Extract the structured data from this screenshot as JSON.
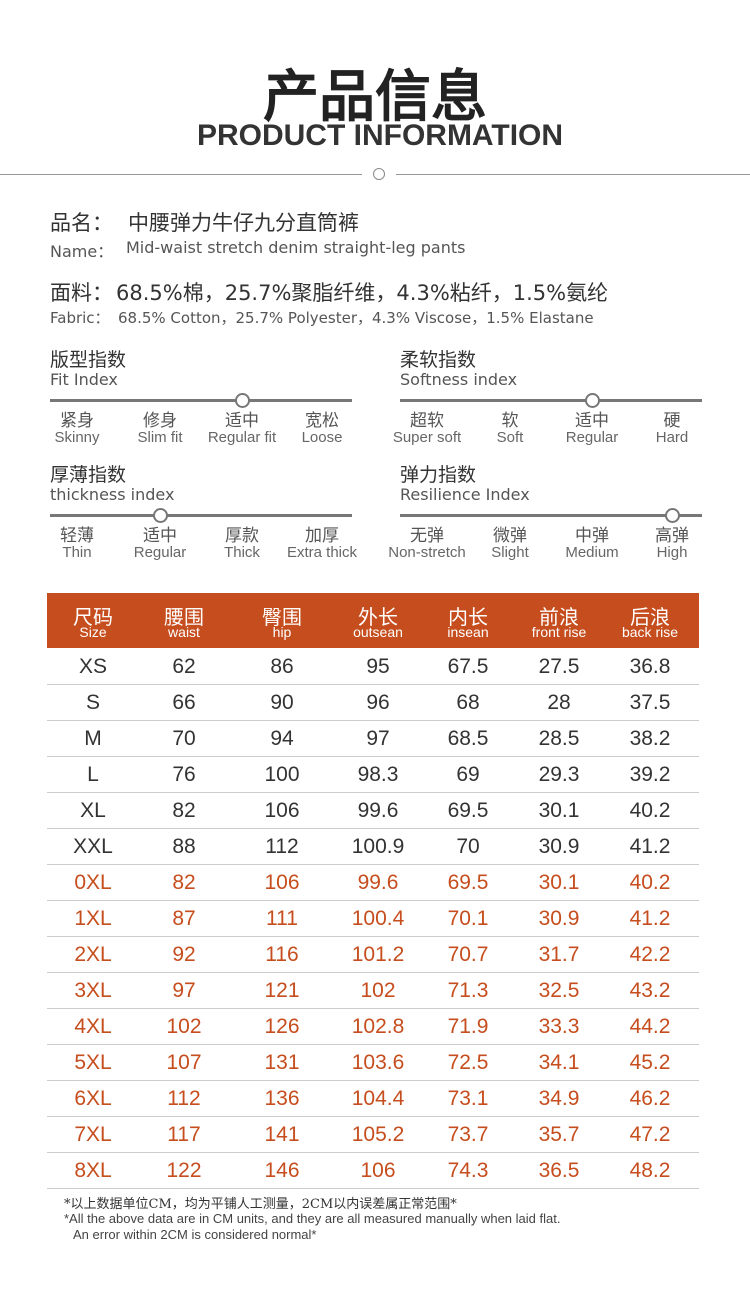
{
  "header": {
    "title": "产品信息",
    "subtitle": "PRODUCT INFORMATION"
  },
  "name": {
    "label_cn": "品名：",
    "value_cn": "中腰弹力牛仔九分直筒裤",
    "label_en": "Name：",
    "value_en": "Mid-waist stretch denim straight-leg pants"
  },
  "fabric": {
    "label_cn": "面料：",
    "value_cn": "68.5%棉，25.7%聚脂纤维，4.3%粘纤，1.5%氨纶",
    "label_en": "Fabric：",
    "value_en": "68.5% Cotton，25.7% Polyester，4.3% Viscose，1.5% Elastane"
  },
  "indices": [
    {
      "title_cn": "版型指数",
      "title_en": "Fit Index",
      "options": [
        {
          "cn": "紧身",
          "en": "Skinny"
        },
        {
          "cn": "修身",
          "en": "Slim fit"
        },
        {
          "cn": "适中",
          "en": "Regular fit"
        },
        {
          "cn": "宽松",
          "en": "Loose"
        }
      ]
    },
    {
      "title_cn": "柔软指数",
      "title_en": "Softness index",
      "options": [
        {
          "cn": "超软",
          "en": "Super soft"
        },
        {
          "cn": "软",
          "en": "Soft"
        },
        {
          "cn": "适中",
          "en": "Regular"
        },
        {
          "cn": "硬",
          "en": "Hard"
        }
      ]
    },
    {
      "title_cn": "厚薄指数",
      "title_en": "thickness index",
      "options": [
        {
          "cn": "轻薄",
          "en": "Thin"
        },
        {
          "cn": "适中",
          "en": "Regular"
        },
        {
          "cn": "厚款",
          "en": "Thick"
        },
        {
          "cn": "加厚",
          "en": "Extra thick"
        }
      ]
    },
    {
      "title_cn": "弹力指数",
      "title_en": "Resilience Index",
      "options": [
        {
          "cn": "无弹",
          "en": "Non-stretch"
        },
        {
          "cn": "微弹",
          "en": "Slight"
        },
        {
          "cn": "中弹",
          "en": "Medium"
        },
        {
          "cn": "高弹",
          "en": "High"
        }
      ]
    }
  ],
  "table": {
    "headers": [
      {
        "cn": "尺码",
        "en": "Size"
      },
      {
        "cn": "腰围",
        "en": "waist"
      },
      {
        "cn": "臀围",
        "en": "hip"
      },
      {
        "cn": "外长",
        "en": "outsean"
      },
      {
        "cn": "内长",
        "en": "insean"
      },
      {
        "cn": "前浪",
        "en": "front rise"
      },
      {
        "cn": "后浪",
        "en": "back rise"
      }
    ],
    "rows": [
      [
        "XS",
        62,
        86,
        95,
        67.5,
        27.5,
        36.8
      ],
      [
        "S",
        66,
        90,
        96,
        68,
        28,
        37.5
      ],
      [
        "M",
        70,
        94,
        97,
        68.5,
        28.5,
        38.2
      ],
      [
        "L",
        76,
        100,
        98.3,
        69,
        29.3,
        39.2
      ],
      [
        "XL",
        82,
        106,
        99.6,
        69.5,
        30.1,
        40.2
      ],
      [
        "XXL",
        88,
        112,
        100.9,
        70,
        30.9,
        41.2
      ],
      [
        "0XL",
        82,
        106,
        99.6,
        69.5,
        30.1,
        40.2
      ],
      [
        "1XL",
        87,
        111,
        100.4,
        70.1,
        30.9,
        41.2
      ],
      [
        "2XL",
        92,
        116,
        101.2,
        70.7,
        31.7,
        42.2
      ],
      [
        "3XL",
        97,
        121,
        102,
        71.3,
        32.5,
        43.2
      ],
      [
        "4XL",
        102,
        126,
        102.8,
        71.9,
        33.3,
        44.2
      ],
      [
        "5XL",
        107,
        131,
        103.6,
        72.5,
        34.1,
        45.2
      ],
      [
        "6XL",
        112,
        136,
        104.4,
        73.1,
        34.9,
        46.2
      ],
      [
        "7XL",
        117,
        141,
        105.2,
        73.7,
        35.7,
        47.2
      ],
      [
        "8XL",
        122,
        146,
        106,
        74.3,
        36.5,
        48.2
      ]
    ]
  },
  "notes": [
    "*以上数据单位CM，均为平铺人工测量，2CM以内误差属正常范围*",
    "*All the above data are in CM units, and they are all measured manually when laid flat.",
    "An error within 2CM is considered normal*"
  ]
}
